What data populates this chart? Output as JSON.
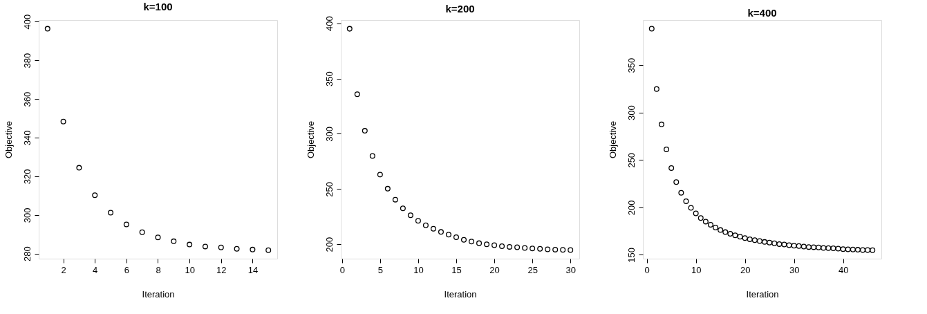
{
  "chart_data": [
    {
      "type": "scatter",
      "title": "k=100",
      "xlabel": "Iteration",
      "ylabel": "Objective",
      "marker": "circle",
      "grid": false,
      "x": [
        1,
        2,
        3,
        4,
        5,
        6,
        7,
        8,
        9,
        10,
        11,
        12,
        13,
        14,
        15
      ],
      "series": [
        {
          "color": "#000000",
          "values": [
            396.3,
            348.3,
            324.4,
            310.2,
            301.2,
            295.1,
            291.1,
            288.4,
            286.4,
            284.7,
            283.7,
            283.2,
            282.5,
            282.1,
            281.8
          ]
        }
      ],
      "xlim": [
        0.44,
        15.56
      ],
      "ylim": [
        277.4,
        400.8
      ],
      "xticks": [
        2,
        4,
        6,
        8,
        10,
        12,
        14
      ],
      "yticks": [
        280,
        300,
        320,
        340,
        360,
        380,
        400
      ]
    },
    {
      "type": "scatter",
      "title": "k=200",
      "xlabel": "Iteration",
      "ylabel": "Objective",
      "marker": "circle",
      "grid": false,
      "x": [
        1,
        2,
        3,
        4,
        5,
        6,
        7,
        8,
        9,
        10,
        11,
        12,
        13,
        14,
        15,
        16,
        17,
        18,
        19,
        20,
        21,
        22,
        23,
        24,
        25,
        26,
        27,
        28,
        29,
        30
      ],
      "series": [
        {
          "color": "#000000",
          "values": [
            395.0,
            335.8,
            302.7,
            279.9,
            263.1,
            250.3,
            240.4,
            232.5,
            226.3,
            221.3,
            217.2,
            214.1,
            211.2,
            208.7,
            206.4,
            204.1,
            202.5,
            201.0,
            200.0,
            199.2,
            198.3,
            197.7,
            197.3,
            196.7,
            196.3,
            195.9,
            195.4,
            195.2,
            195.0,
            194.8
          ]
        }
      ],
      "xlim": [
        -0.16,
        31.16
      ],
      "ylim": [
        187,
        402.9
      ],
      "xticks": [
        0,
        5,
        10,
        15,
        20,
        25,
        30
      ],
      "yticks": [
        200,
        250,
        300,
        350,
        400
      ]
    },
    {
      "type": "scatter",
      "title": "k=400",
      "xlabel": "Iteration",
      "ylabel": "Objective",
      "marker": "circle",
      "grid": false,
      "x": [
        1,
        2,
        3,
        4,
        5,
        6,
        7,
        8,
        9,
        10,
        11,
        12,
        13,
        14,
        15,
        16,
        17,
        18,
        19,
        20,
        21,
        22,
        23,
        24,
        25,
        26,
        27,
        28,
        29,
        30,
        31,
        32,
        33,
        34,
        35,
        36,
        37,
        38,
        39,
        40,
        41,
        42,
        43,
        44,
        45,
        46
      ],
      "series": [
        {
          "color": "#000000",
          "values": [
            388.4,
            324.7,
            287.5,
            261.2,
            241.4,
            226.7,
            215.4,
            206.5,
            199.5,
            193.7,
            188.8,
            185.0,
            181.6,
            178.7,
            176.1,
            173.9,
            172.2,
            170.5,
            169.1,
            167.6,
            166.4,
            165.4,
            164.5,
            163.5,
            162.8,
            162.1,
            161.3,
            160.9,
            160.1,
            159.6,
            159.2,
            158.7,
            158.2,
            158.0,
            157.7,
            157.2,
            157.0,
            156.8,
            156.5,
            156.0,
            155.8,
            155.6,
            155.3,
            155.1,
            155.1,
            154.8
          ]
        }
      ],
      "xlim": [
        -0.8,
        47.8
      ],
      "ylim": [
        145.9,
        397.5
      ],
      "xticks": [
        0,
        10,
        20,
        30,
        40
      ],
      "yticks": [
        150,
        200,
        250,
        300,
        350
      ]
    }
  ]
}
